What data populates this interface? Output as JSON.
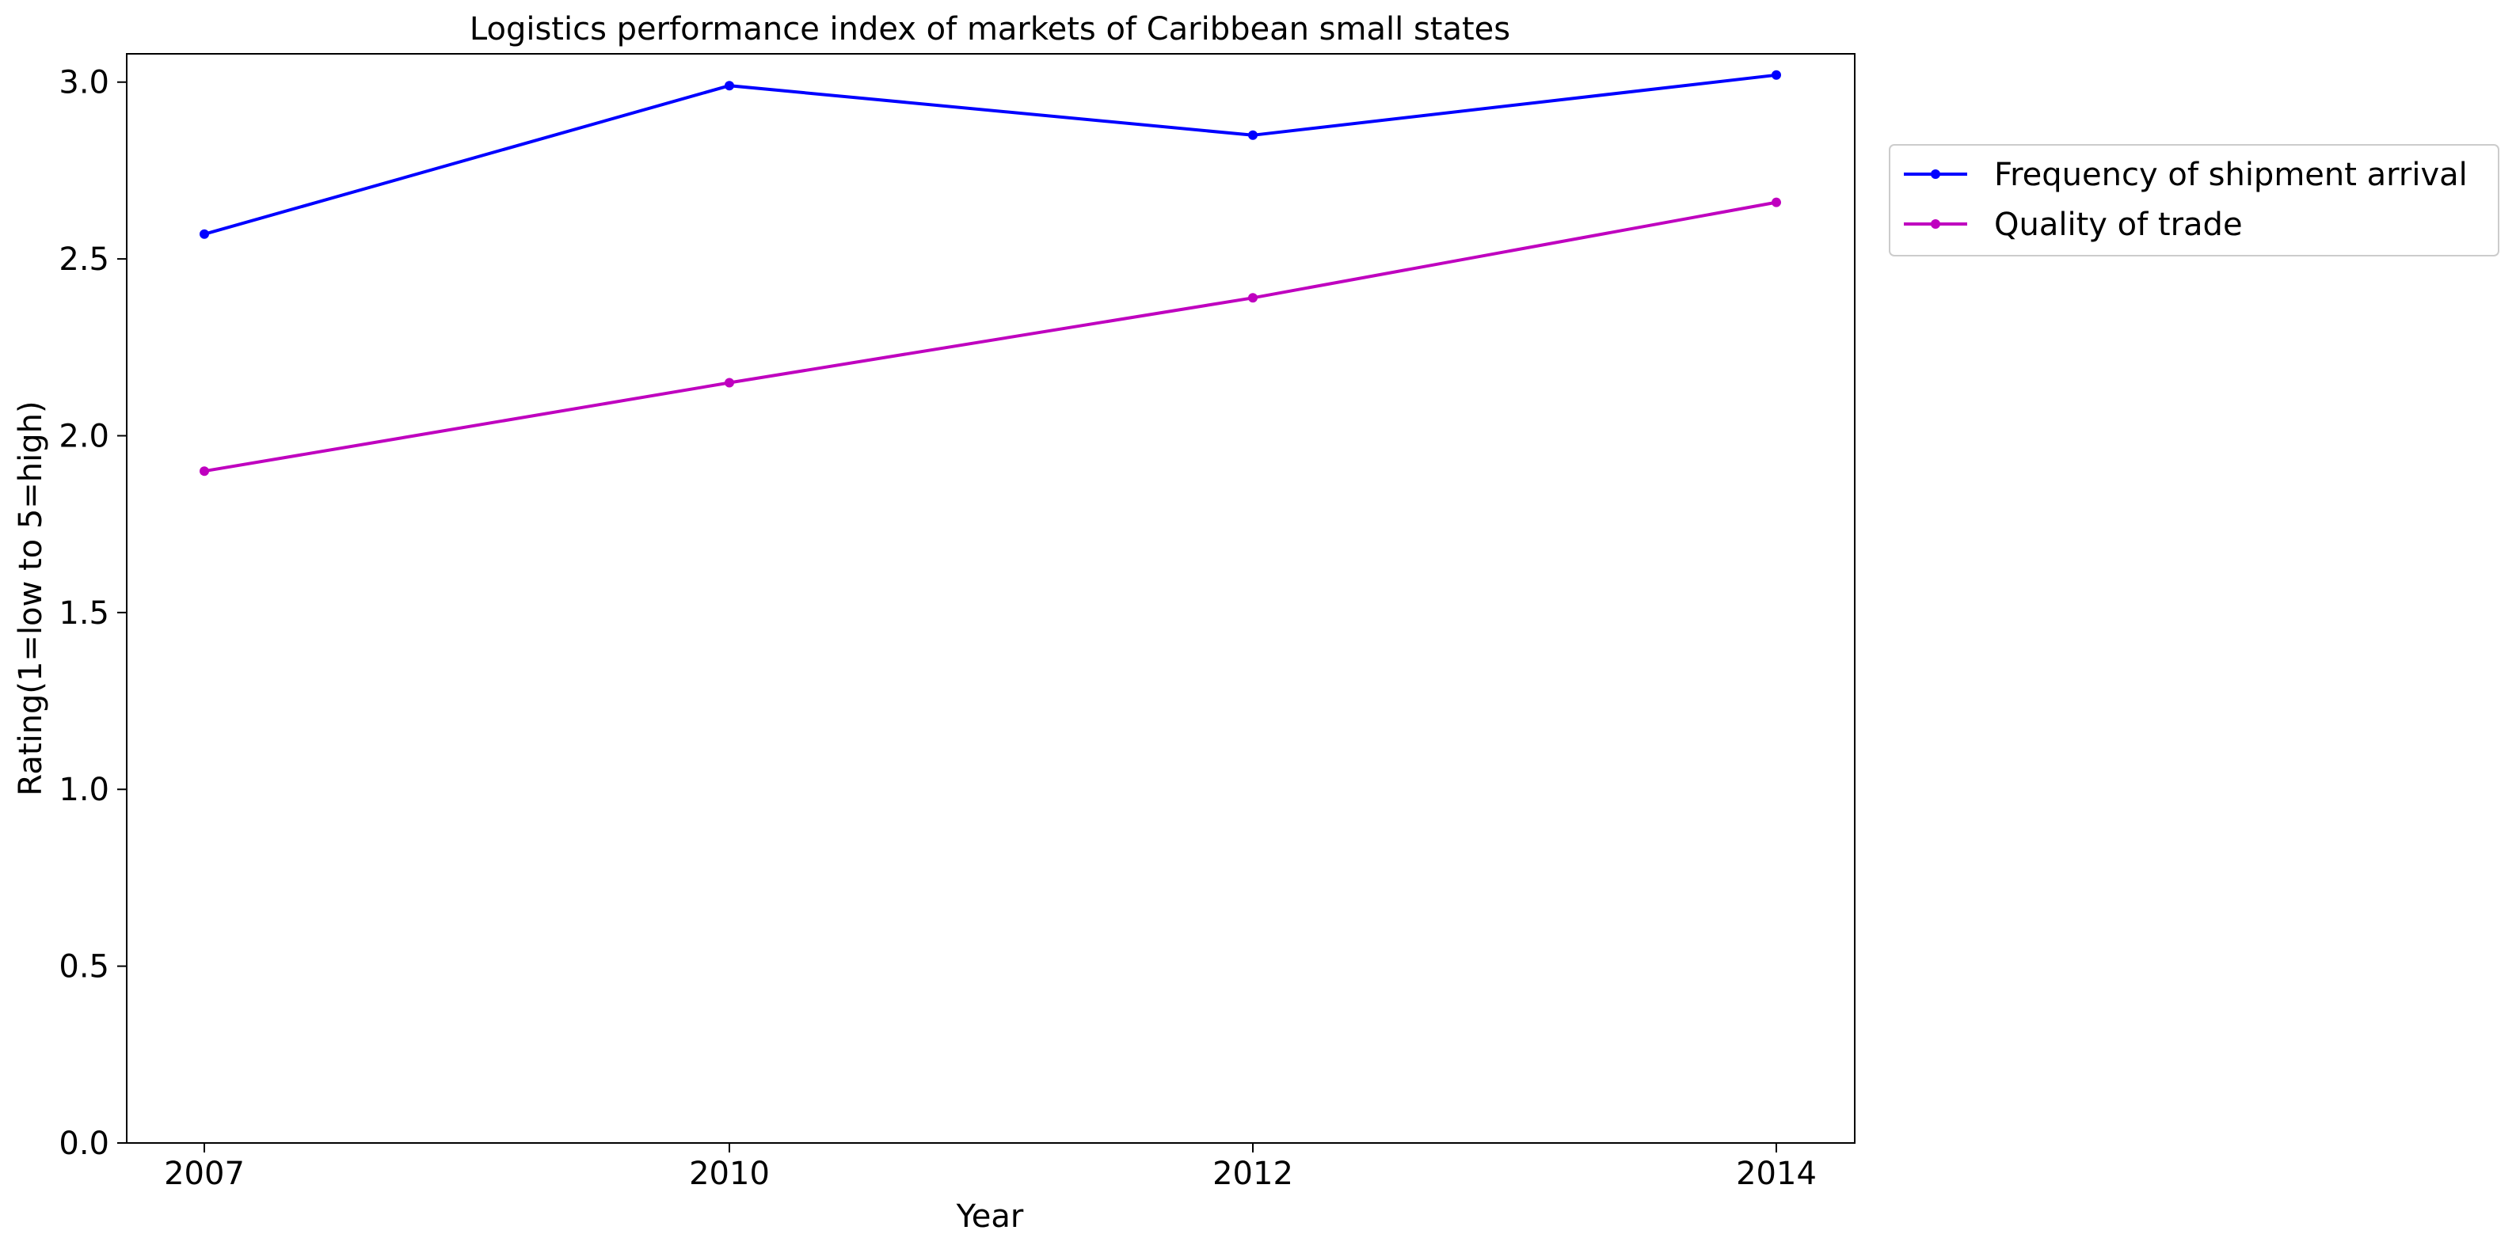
{
  "chart_data": {
    "type": "line",
    "title": "Logistics performance index of markets of Caribbean small states",
    "xlabel": "Year",
    "ylabel": "Rating(1=low to 5=high)",
    "categories": [
      "2007",
      "2010",
      "2012",
      "2014"
    ],
    "ylim": [
      0,
      3.08
    ],
    "yticks": [
      0.0,
      0.5,
      1.0,
      1.5,
      2.0,
      2.5,
      3.0
    ],
    "ytick_labels": [
      "0.0",
      "0.5",
      "1.0",
      "1.5",
      "2.0",
      "2.5",
      "3.0"
    ],
    "grid": false,
    "legend_position": "outside top-right",
    "series": [
      {
        "name": "Frequency of shipment arrival",
        "color": "#0000ff",
        "values": [
          2.57,
          2.99,
          2.85,
          3.02
        ]
      },
      {
        "name": "Quality of trade",
        "color": "#bf00bf",
        "values": [
          1.9,
          2.15,
          2.39,
          2.66
        ]
      }
    ]
  }
}
